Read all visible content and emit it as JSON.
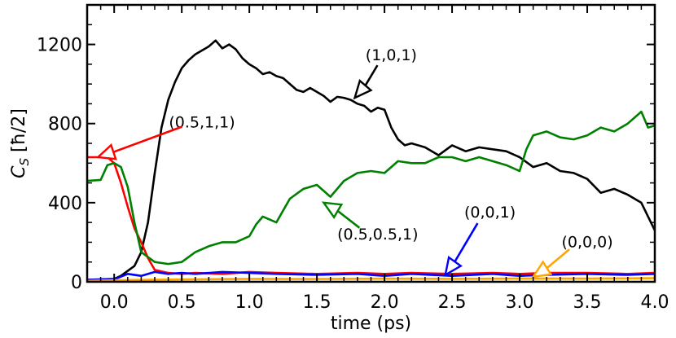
{
  "chart_data": {
    "type": "line",
    "xlabel": "time (ps)",
    "ylabel_main": "C",
    "ylabel_sub": "S",
    "ylabel_unit": " [ħ/2]",
    "xlim": [
      -0.2,
      4.0
    ],
    "ylim": [
      0,
      1400
    ],
    "xticks": [
      0.0,
      0.5,
      1.0,
      1.5,
      2.0,
      2.5,
      3.0,
      3.5,
      4.0
    ],
    "xtick_labels": [
      "0.0",
      "0.5",
      "1.0",
      "1.5",
      "2.0",
      "2.5",
      "3.0",
      "3.5",
      "4.0"
    ],
    "yticks": [
      0,
      400,
      800,
      1200
    ],
    "ytick_labels": [
      "0",
      "400",
      "800",
      "1200"
    ],
    "grid": false,
    "legend": "none",
    "series": [
      {
        "label": "(1,0,1)",
        "color": "#000000",
        "x": [
          -0.2,
          0.0,
          0.05,
          0.1,
          0.15,
          0.2,
          0.25,
          0.3,
          0.35,
          0.4,
          0.45,
          0.5,
          0.55,
          0.6,
          0.65,
          0.7,
          0.75,
          0.8,
          0.85,
          0.9,
          0.95,
          1.0,
          1.05,
          1.1,
          1.15,
          1.2,
          1.25,
          1.3,
          1.35,
          1.4,
          1.45,
          1.5,
          1.55,
          1.6,
          1.65,
          1.7,
          1.75,
          1.8,
          1.85,
          1.9,
          1.95,
          2.0,
          2.05,
          2.1,
          2.15,
          2.2,
          2.3,
          2.4,
          2.5,
          2.6,
          2.7,
          2.8,
          2.9,
          3.0,
          3.1,
          3.2,
          3.3,
          3.4,
          3.5,
          3.6,
          3.7,
          3.8,
          3.9,
          3.95,
          4.0
        ],
        "y": [
          10,
          15,
          30,
          55,
          80,
          150,
          300,
          550,
          780,
          920,
          1010,
          1080,
          1120,
          1150,
          1170,
          1190,
          1220,
          1180,
          1200,
          1175,
          1130,
          1100,
          1080,
          1050,
          1060,
          1040,
          1030,
          1000,
          970,
          960,
          980,
          960,
          940,
          910,
          935,
          930,
          920,
          900,
          890,
          860,
          880,
          870,
          780,
          720,
          690,
          700,
          680,
          640,
          690,
          660,
          680,
          670,
          660,
          630,
          580,
          600,
          560,
          550,
          520,
          450,
          470,
          440,
          400,
          330,
          260
        ]
      },
      {
        "label": "(0.5,1,1)",
        "color": "#ff0000",
        "x": [
          -0.2,
          -0.1,
          -0.05,
          0.0,
          0.05,
          0.1,
          0.15,
          0.2,
          0.25,
          0.3,
          0.4,
          0.5,
          0.6,
          0.8,
          1.0,
          1.2,
          1.5,
          1.8,
          2.0,
          2.2,
          2.5,
          2.8,
          3.0,
          3.2,
          3.5,
          3.8,
          4.0
        ],
        "y": [
          630,
          630,
          630,
          600,
          500,
          380,
          270,
          200,
          120,
          60,
          45,
          40,
          45,
          40,
          50,
          45,
          40,
          45,
          40,
          45,
          40,
          45,
          40,
          45,
          45,
          40,
          45
        ]
      },
      {
        "label": "(0.5,0.5,1)",
        "color": "#008000",
        "x": [
          -0.2,
          -0.1,
          -0.05,
          0.0,
          0.05,
          0.1,
          0.15,
          0.2,
          0.3,
          0.4,
          0.5,
          0.6,
          0.7,
          0.8,
          0.9,
          1.0,
          1.05,
          1.1,
          1.2,
          1.3,
          1.4,
          1.5,
          1.6,
          1.7,
          1.8,
          1.9,
          2.0,
          2.1,
          2.2,
          2.3,
          2.4,
          2.5,
          2.6,
          2.7,
          2.8,
          2.9,
          3.0,
          3.05,
          3.1,
          3.2,
          3.3,
          3.4,
          3.5,
          3.6,
          3.7,
          3.8,
          3.9,
          3.95,
          4.0
        ],
        "y": [
          510,
          515,
          590,
          600,
          580,
          480,
          300,
          150,
          100,
          90,
          100,
          150,
          180,
          200,
          200,
          230,
          290,
          330,
          300,
          420,
          470,
          490,
          430,
          510,
          550,
          560,
          550,
          610,
          600,
          600,
          630,
          630,
          610,
          630,
          610,
          590,
          560,
          670,
          740,
          760,
          730,
          720,
          740,
          780,
          760,
          800,
          860,
          780,
          790
        ]
      },
      {
        "label": "(0,0,1)",
        "color": "#0000ff",
        "x": [
          -0.2,
          0.0,
          0.1,
          0.2,
          0.3,
          0.4,
          0.5,
          0.6,
          0.8,
          1.0,
          1.2,
          1.5,
          1.8,
          2.0,
          2.2,
          2.5,
          2.8,
          3.0,
          3.2,
          3.5,
          3.8,
          4.0
        ],
        "y": [
          10,
          12,
          40,
          30,
          50,
          40,
          45,
          40,
          50,
          45,
          40,
          35,
          40,
          30,
          40,
          30,
          40,
          30,
          35,
          40,
          35,
          40
        ]
      },
      {
        "label": "(0,0,0)",
        "color": "#ffa500",
        "x": [
          -0.2,
          0.0,
          0.5,
          1.0,
          1.5,
          2.0,
          2.5,
          3.0,
          3.5,
          4.0
        ],
        "y": [
          5,
          8,
          12,
          15,
          14,
          16,
          15,
          17,
          16,
          18
        ]
      }
    ],
    "annotations": [
      {
        "text": "(1,0,1)",
        "color": "#000000",
        "text_x": 2.05,
        "text_y": 1120,
        "tip_x": 1.78,
        "tip_y": 930
      },
      {
        "text": "(0.5,1,1)",
        "color": "#ff0000",
        "text_x": 0.65,
        "text_y": 780,
        "tip_x": -0.12,
        "tip_y": 630
      },
      {
        "text": "(0.5,0.5,1)",
        "color": "#008000",
        "text_x": 1.95,
        "text_y": 215,
        "tip_x": 1.55,
        "tip_y": 400
      },
      {
        "text": "(0,0,1)",
        "color": "#0000ff",
        "text_x": 2.78,
        "text_y": 325,
        "tip_x": 2.45,
        "tip_y": 35
      },
      {
        "text": "(0,0,0)",
        "color": "#ffa500",
        "text_x": 3.5,
        "text_y": 175,
        "tip_x": 3.1,
        "tip_y": 25
      }
    ]
  }
}
